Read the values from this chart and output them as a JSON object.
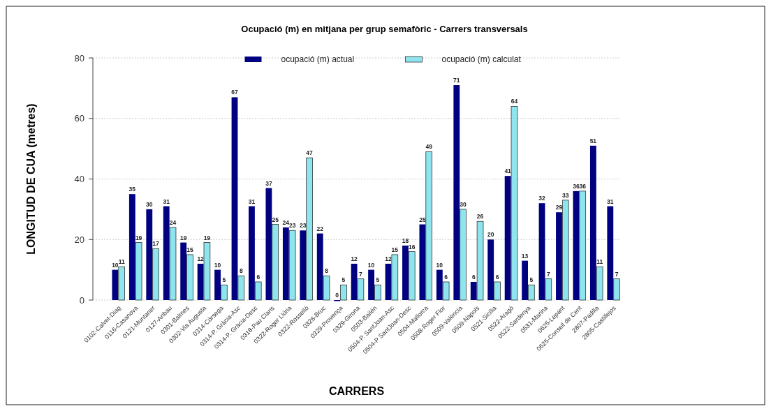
{
  "chart_data": {
    "type": "bar",
    "title": "Ocupació (m) en mitjana per grup semafòric - Carrers transversals",
    "xlabel": "CARRERS",
    "ylabel": "LONGITUD DE CUA (metres)",
    "categories": [
      "0102-Calvet-Diag",
      "0116-Casanova",
      "0121-Muntaner",
      "0127-Aribau",
      "0301-Balmes",
      "0302-Via Augusta",
      "0314-Còrsega",
      "0314-P. Gràcia-Asc",
      "0314-P. Gràcia-Desc",
      "0318-Pau Claris",
      "0322-Roger Llúria",
      "0322-Rosselló",
      "0326-Bruc",
      "0329-Provença",
      "0329-Girona",
      "0503-Bailén",
      "0504-P. SantJoan-Asc",
      "0504-P SantJoan-Desc",
      "0504-Mallorca",
      "0508-Roger Flor",
      "0509-València",
      "0509-Nàpols",
      "0521-Sicília",
      "0522-Aragó",
      "0522-Sardenya",
      "0531-Marina",
      "0625-Lepant",
      "0625-Consell de Cent",
      "2807-Padilla",
      "2805-Castillejos"
    ],
    "series": [
      {
        "name": "ocupació (m) actual",
        "color": "#000080",
        "values": [
          10,
          35,
          30,
          31,
          19,
          12,
          10,
          67,
          31,
          37,
          24,
          23,
          22,
          0,
          12,
          10,
          12,
          18,
          25,
          10,
          71,
          6,
          20,
          41,
          13,
          32,
          29,
          36,
          51,
          31
        ]
      },
      {
        "name": "ocupació (m) calculat",
        "color": "#8ee5ee",
        "values": [
          11,
          19,
          17,
          24,
          15,
          19,
          5,
          8,
          6,
          25,
          23,
          47,
          8,
          5,
          7,
          5,
          15,
          16,
          49,
          6,
          30,
          26,
          6,
          64,
          5,
          7,
          33,
          36,
          11,
          7
        ]
      }
    ],
    "ylim": [
      0,
      80
    ],
    "yticks": [
      0,
      20,
      40,
      60,
      80
    ],
    "grid": "y",
    "legend": "top",
    "data_labels": true
  }
}
